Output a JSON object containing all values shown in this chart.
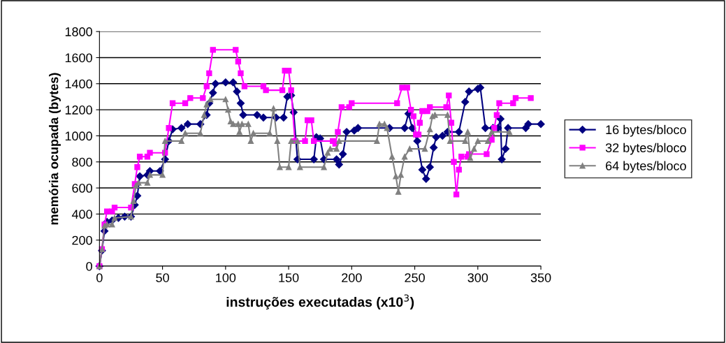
{
  "chart_data": {
    "type": "line",
    "xlabel": "instruções executadas (x10$^{3}$)",
    "ylabel": "memória ocupada (bytes)",
    "xlim": [
      0,
      350
    ],
    "xticks": [
      0,
      50,
      100,
      150,
      200,
      250,
      300,
      350
    ],
    "ylim": [
      0,
      1800
    ],
    "yticks": [
      0,
      200,
      400,
      600,
      800,
      1000,
      1200,
      1400,
      1600,
      1800
    ],
    "grid": "y",
    "legend": "right",
    "line_style": "solid",
    "series": [
      {
        "name": "16 bytes/bloco",
        "color": "#000080",
        "marker": "diamond",
        "x": [
          0,
          2,
          4,
          6,
          10,
          15,
          20,
          25,
          28,
          30,
          32,
          38,
          40,
          48,
          52,
          55,
          58,
          65,
          70,
          80,
          85,
          87,
          90,
          92,
          100,
          106,
          109,
          112,
          114,
          125,
          130,
          140,
          146,
          149,
          152,
          154,
          157,
          170,
          172,
          175,
          178,
          188,
          190,
          193,
          196,
          202,
          205,
          230,
          242,
          245,
          248,
          252,
          256,
          259,
          262,
          265,
          267,
          272,
          276,
          285,
          290,
          293,
          300,
          302,
          306,
          312,
          316,
          318,
          319,
          322,
          324,
          338,
          340,
          350
        ],
        "values": [
          0,
          120,
          270,
          340,
          350,
          370,
          380,
          380,
          470,
          540,
          690,
          700,
          730,
          730,
          820,
          960,
          1050,
          1060,
          1090,
          1090,
          1160,
          1250,
          1330,
          1400,
          1410,
          1410,
          1340,
          1250,
          1160,
          1160,
          1140,
          1140,
          1140,
          1300,
          1310,
          1180,
          820,
          820,
          990,
          980,
          820,
          820,
          780,
          860,
          1030,
          1040,
          1060,
          1060,
          1060,
          1170,
          1060,
          960,
          740,
          670,
          760,
          910,
          990,
          1000,
          1030,
          1030,
          1260,
          1340,
          1360,
          1370,
          1060,
          1060,
          1060,
          1130,
          820,
          900,
          1060,
          1060,
          1090,
          1090
        ]
      },
      {
        "name": "32 bytes/bloco",
        "color": "#ff00ff",
        "marker": "square",
        "x": [
          0,
          2,
          4,
          6,
          10,
          12,
          25,
          28,
          30,
          32,
          38,
          40,
          52,
          55,
          58,
          68,
          72,
          82,
          85,
          87,
          90,
          108,
          110,
          112,
          115,
          130,
          132,
          145,
          147,
          150,
          152,
          155,
          163,
          165,
          168,
          170,
          185,
          187,
          189,
          192,
          198,
          200,
          236,
          240,
          244,
          247,
          249,
          251,
          253,
          254,
          256,
          260,
          262,
          275,
          277,
          279,
          281,
          283,
          285,
          287,
          292,
          293,
          307,
          311,
          313,
          315,
          317,
          328,
          330,
          342
        ],
        "values": [
          0,
          130,
          320,
          420,
          420,
          450,
          450,
          630,
          760,
          840,
          840,
          870,
          870,
          1060,
          1250,
          1250,
          1290,
          1290,
          1380,
          1480,
          1660,
          1660,
          1570,
          1480,
          1380,
          1380,
          1350,
          1350,
          1500,
          1500,
          1350,
          960,
          960,
          1120,
          1120,
          960,
          960,
          940,
          1030,
          1220,
          1220,
          1250,
          1250,
          1370,
          1370,
          1200,
          1150,
          1010,
          1010,
          1100,
          1190,
          1190,
          1220,
          1220,
          1310,
          1100,
          800,
          550,
          740,
          840,
          840,
          860,
          860,
          970,
          1060,
          1160,
          1250,
          1250,
          1290,
          1290
        ]
      },
      {
        "name": "64 bytes/bloco",
        "color": "#808080",
        "marker": "triangle",
        "x": [
          0,
          2,
          4,
          6,
          10,
          12,
          25,
          27,
          29,
          31,
          38,
          40,
          50,
          52,
          65,
          68,
          80,
          83,
          85,
          88,
          100,
          102,
          104,
          106,
          110,
          111,
          113,
          118,
          120,
          122,
          135,
          138,
          141,
          143,
          150,
          152,
          157,
          159,
          178,
          181,
          183,
          188,
          190,
          220,
          222,
          226,
          228,
          232,
          235,
          237,
          239,
          242,
          246,
          258,
          262,
          264,
          266,
          276,
          278,
          290,
          292,
          294,
          297,
          300,
          308,
          311,
          325
        ],
        "values": [
          0,
          130,
          310,
          320,
          320,
          370,
          380,
          500,
          620,
          640,
          640,
          700,
          700,
          960,
          960,
          1020,
          1020,
          1160,
          1240,
          1280,
          1280,
          1200,
          1110,
          1090,
          1090,
          1030,
          1090,
          1090,
          960,
          1020,
          1020,
          1210,
          960,
          760,
          760,
          960,
          960,
          760,
          760,
          870,
          900,
          900,
          960,
          960,
          1090,
          1090,
          1060,
          840,
          690,
          570,
          700,
          840,
          900,
          900,
          1050,
          1150,
          1160,
          1160,
          960,
          960,
          1030,
          830,
          900,
          960,
          960,
          1030,
          1030
        ]
      }
    ]
  }
}
